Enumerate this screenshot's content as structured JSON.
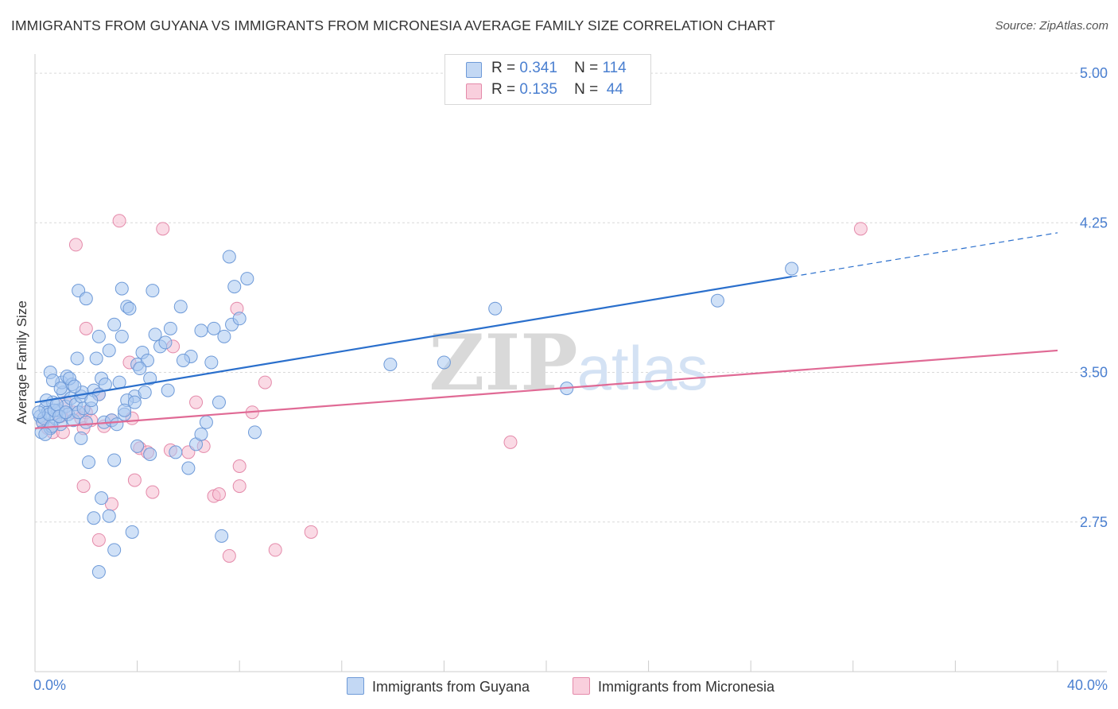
{
  "title": "IMMIGRANTS FROM GUYANA VS IMMIGRANTS FROM MICRONESIA AVERAGE FAMILY SIZE CORRELATION CHART",
  "source": "Source: ZipAtlas.com",
  "watermark": {
    "zip": "ZIP",
    "atlas": "atlas"
  },
  "legend": {
    "rows": [
      {
        "r_label": "R =",
        "r_value": "0.341",
        "n_label": "N =",
        "n_value": "114"
      },
      {
        "r_label": "R =",
        "r_value": "0.135",
        "n_label": "N =",
        "n_value": "44"
      }
    ]
  },
  "colors": {
    "guyana_fill": "#aac8f0",
    "guyana_stroke": "#6e9ad8",
    "guyana_line": "#2a6fcc",
    "micronesia_fill": "#f6bcd0",
    "micronesia_stroke": "#e48aaa",
    "micronesia_line": "#e06a95",
    "tick_label": "#4a7fd0",
    "grid": "#d9d9d9"
  },
  "chart_data": {
    "type": "scatter",
    "title": "IMMIGRANTS FROM GUYANA VS IMMIGRANTS FROM MICRONESIA AVERAGE FAMILY SIZE CORRELATION CHART",
    "xlabel": "",
    "ylabel": "Average Family Size",
    "xlim": [
      0,
      40
    ],
    "ylim": [
      2.0,
      5.08
    ],
    "x_tick_labels": [
      "0.0%",
      "40.0%"
    ],
    "y_ticks": [
      2.75,
      3.5,
      4.25,
      5.0
    ],
    "y_tick_labels": [
      "2.75",
      "3.50",
      "4.25",
      "5.00"
    ],
    "legend_position": "top-center",
    "series": [
      {
        "name": "Immigrants from Guyana",
        "trend": {
          "x": [
            0.0,
            29.6
          ],
          "y": [
            3.35,
            3.98
          ],
          "dashed_to": [
            40.0,
            4.2
          ]
        },
        "points": [
          [
            0.2,
            3.28
          ],
          [
            0.3,
            3.25
          ],
          [
            0.4,
            3.32
          ],
          [
            0.25,
            3.2
          ],
          [
            0.5,
            3.3
          ],
          [
            0.6,
            3.22
          ],
          [
            0.7,
            3.35
          ],
          [
            0.8,
            3.27
          ],
          [
            0.9,
            3.31
          ],
          [
            1.0,
            3.24
          ],
          [
            1.1,
            3.4
          ],
          [
            1.2,
            3.33
          ],
          [
            1.3,
            3.29
          ],
          [
            1.4,
            3.37
          ],
          [
            1.5,
            3.26
          ],
          [
            1.6,
            3.34
          ],
          [
            1.7,
            3.3
          ],
          [
            1.8,
            3.38
          ],
          [
            1.9,
            3.32
          ],
          [
            2.0,
            3.25
          ],
          [
            0.35,
            3.27
          ],
          [
            0.45,
            3.36
          ],
          [
            0.55,
            3.29
          ],
          [
            0.65,
            3.23
          ],
          [
            0.75,
            3.31
          ],
          [
            0.85,
            3.34
          ],
          [
            0.95,
            3.28
          ],
          [
            1.05,
            3.45
          ],
          [
            1.25,
            3.48
          ],
          [
            1.45,
            3.44
          ],
          [
            0.6,
            3.5
          ],
          [
            0.7,
            3.46
          ],
          [
            1.35,
            3.47
          ],
          [
            1.65,
            3.57
          ],
          [
            1.0,
            3.42
          ],
          [
            1.85,
            3.4
          ],
          [
            2.2,
            3.32
          ],
          [
            2.3,
            3.41
          ],
          [
            2.5,
            3.39
          ],
          [
            2.7,
            3.25
          ],
          [
            2.4,
            3.57
          ],
          [
            2.6,
            3.47
          ],
          [
            2.9,
            3.61
          ],
          [
            3.1,
            3.74
          ],
          [
            3.3,
            3.45
          ],
          [
            3.4,
            3.68
          ],
          [
            3.5,
            3.29
          ],
          [
            3.6,
            3.83
          ],
          [
            3.7,
            3.82
          ],
          [
            3.9,
            3.38
          ],
          [
            4.0,
            3.54
          ],
          [
            4.2,
            3.6
          ],
          [
            4.4,
            3.56
          ],
          [
            4.5,
            3.47
          ],
          [
            4.7,
            3.69
          ],
          [
            4.9,
            3.63
          ],
          [
            5.1,
            3.65
          ],
          [
            5.3,
            3.72
          ],
          [
            5.7,
            3.83
          ],
          [
            6.1,
            3.58
          ],
          [
            6.5,
            3.71
          ],
          [
            7.0,
            3.72
          ],
          [
            7.4,
            3.68
          ],
          [
            7.7,
            3.74
          ],
          [
            7.8,
            3.93
          ],
          [
            8.0,
            3.77
          ],
          [
            8.3,
            3.97
          ],
          [
            7.6,
            4.08
          ],
          [
            1.7,
            3.91
          ],
          [
            2.0,
            3.87
          ],
          [
            3.4,
            3.92
          ],
          [
            4.6,
            3.91
          ],
          [
            2.5,
            3.68
          ],
          [
            3.6,
            3.36
          ],
          [
            4.1,
            3.52
          ],
          [
            5.2,
            3.41
          ],
          [
            3.0,
            3.26
          ],
          [
            3.2,
            3.24
          ],
          [
            3.5,
            3.31
          ],
          [
            1.8,
            3.17
          ],
          [
            2.1,
            3.05
          ],
          [
            3.1,
            3.06
          ],
          [
            4.0,
            3.13
          ],
          [
            4.5,
            3.09
          ],
          [
            5.5,
            3.1
          ],
          [
            6.0,
            3.02
          ],
          [
            6.3,
            3.14
          ],
          [
            2.6,
            2.87
          ],
          [
            2.3,
            2.77
          ],
          [
            2.9,
            2.78
          ],
          [
            3.8,
            2.7
          ],
          [
            3.1,
            2.61
          ],
          [
            2.5,
            2.5
          ],
          [
            7.2,
            3.35
          ],
          [
            6.7,
            3.25
          ],
          [
            6.5,
            3.19
          ],
          [
            8.6,
            3.2
          ],
          [
            7.3,
            2.68
          ],
          [
            13.9,
            3.54
          ],
          [
            16.0,
            3.55
          ],
          [
            18.0,
            3.82
          ],
          [
            20.8,
            3.42
          ],
          [
            26.7,
            3.86
          ],
          [
            29.6,
            4.02
          ],
          [
            1.2,
            3.3
          ],
          [
            2.2,
            3.36
          ],
          [
            3.9,
            3.35
          ],
          [
            4.3,
            3.4
          ],
          [
            0.4,
            3.19
          ],
          [
            0.15,
            3.3
          ],
          [
            1.55,
            3.43
          ],
          [
            2.75,
            3.44
          ],
          [
            5.8,
            3.56
          ],
          [
            6.9,
            3.55
          ]
        ]
      },
      {
        "name": "Immigrants from Micronesia",
        "trend": {
          "x": [
            0.0,
            40.0
          ],
          "y": [
            3.22,
            3.61
          ]
        },
        "points": [
          [
            0.3,
            3.25
          ],
          [
            0.5,
            3.22
          ],
          [
            0.7,
            3.2
          ],
          [
            1.0,
            3.28
          ],
          [
            1.2,
            3.35
          ],
          [
            1.5,
            3.3
          ],
          [
            1.8,
            3.27
          ],
          [
            2.0,
            3.3
          ],
          [
            1.9,
            3.22
          ],
          [
            2.2,
            3.26
          ],
          [
            2.5,
            3.39
          ],
          [
            2.7,
            3.23
          ],
          [
            3.0,
            3.26
          ],
          [
            1.6,
            4.14
          ],
          [
            3.3,
            4.26
          ],
          [
            5.0,
            4.22
          ],
          [
            2.0,
            3.72
          ],
          [
            3.7,
            3.55
          ],
          [
            5.4,
            3.63
          ],
          [
            7.9,
            3.82
          ],
          [
            9.0,
            3.45
          ],
          [
            6.3,
            3.35
          ],
          [
            8.5,
            3.3
          ],
          [
            3.8,
            3.27
          ],
          [
            4.1,
            3.12
          ],
          [
            4.4,
            3.1
          ],
          [
            5.3,
            3.11
          ],
          [
            6.0,
            3.1
          ],
          [
            6.6,
            3.13
          ],
          [
            8.0,
            3.03
          ],
          [
            1.9,
            2.93
          ],
          [
            3.0,
            2.84
          ],
          [
            3.9,
            2.96
          ],
          [
            4.6,
            2.9
          ],
          [
            7.0,
            2.88
          ],
          [
            7.2,
            2.89
          ],
          [
            8.0,
            2.93
          ],
          [
            10.8,
            2.7
          ],
          [
            2.5,
            2.66
          ],
          [
            7.6,
            2.58
          ],
          [
            9.4,
            2.61
          ],
          [
            18.6,
            3.15
          ],
          [
            32.3,
            4.22
          ],
          [
            1.1,
            3.2
          ]
        ]
      }
    ]
  },
  "bottom_legend": [
    "Immigrants from Guyana",
    "Immigrants from Micronesia"
  ]
}
